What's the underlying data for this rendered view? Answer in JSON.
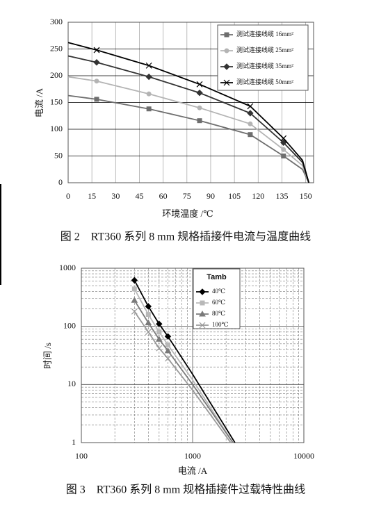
{
  "chart_data": [
    {
      "type": "line",
      "caption": "图 2　RT360 系列 8 mm 规格插接件电流与温度曲线",
      "x_label": "环境温度 /℃",
      "y_label": "电流 /A",
      "x": [
        0,
        18,
        51,
        83,
        115,
        136,
        148,
        152
      ],
      "xlim": [
        0,
        155
      ],
      "xticks": [
        0,
        15,
        30,
        45,
        60,
        75,
        90,
        105,
        120,
        135,
        150
      ],
      "ylim": [
        0,
        300
      ],
      "yticks": [
        0,
        50,
        100,
        150,
        200,
        250,
        300
      ],
      "grid": true,
      "legend": "upper right",
      "series": [
        {
          "name": "测试连接线缆 16mm²",
          "color": "#6e6e6e",
          "marker": "square",
          "values": [
            163,
            156,
            138,
            116,
            90,
            50,
            25,
            0
          ]
        },
        {
          "name": "测试连接线缆 25mm²",
          "color": "#b4b4b4",
          "marker": "circle",
          "values": [
            198,
            190,
            166,
            140,
            110,
            62,
            32,
            0
          ]
        },
        {
          "name": "测试连接线缆 35mm²",
          "color": "#333333",
          "marker": "diamond",
          "values": [
            237,
            225,
            198,
            168,
            130,
            75,
            38,
            0
          ]
        },
        {
          "name": "测试连接线缆 50mm²",
          "color": "#000000",
          "marker": "x",
          "values": [
            262,
            248,
            219,
            184,
            143,
            83,
            42,
            0
          ]
        }
      ]
    },
    {
      "type": "line",
      "caption": "图 3　RT360 系列 8 mm 规格插接件过载特性曲线",
      "x_label": "电流 /A",
      "y_label": "时间 /s",
      "log_x": true,
      "log_y": true,
      "xlim": [
        100,
        10000
      ],
      "xticks": [
        100,
        1000,
        10000
      ],
      "ylim": [
        1,
        1000
      ],
      "yticks": [
        1,
        10,
        100,
        1000
      ],
      "grid": true,
      "legend": "upper left",
      "legend_title": "Tamb",
      "series": [
        {
          "name": "40℃",
          "color": "#000000",
          "marker": "diamond",
          "x": [
            300,
            400,
            500,
            600,
            1000,
            2400
          ],
          "values": [
            620,
            220,
            110,
            67,
            15,
            1
          ]
        },
        {
          "name": "60℃",
          "color": "#b8b8b8",
          "marker": "square",
          "x": [
            300,
            400,
            500,
            600,
            1000,
            2300
          ],
          "values": [
            440,
            160,
            80,
            48,
            12,
            1
          ]
        },
        {
          "name": "80℃",
          "color": "#7a7a7a",
          "marker": "triangle",
          "x": [
            300,
            400,
            500,
            600,
            1000,
            2300
          ],
          "values": [
            280,
            115,
            60,
            38,
            10,
            1
          ]
        },
        {
          "name": "100℃",
          "color": "#999999",
          "marker": "x",
          "x": [
            300,
            400,
            500,
            600,
            1000,
            2200
          ],
          "values": [
            180,
            80,
            42,
            28,
            8,
            1
          ]
        }
      ]
    }
  ]
}
